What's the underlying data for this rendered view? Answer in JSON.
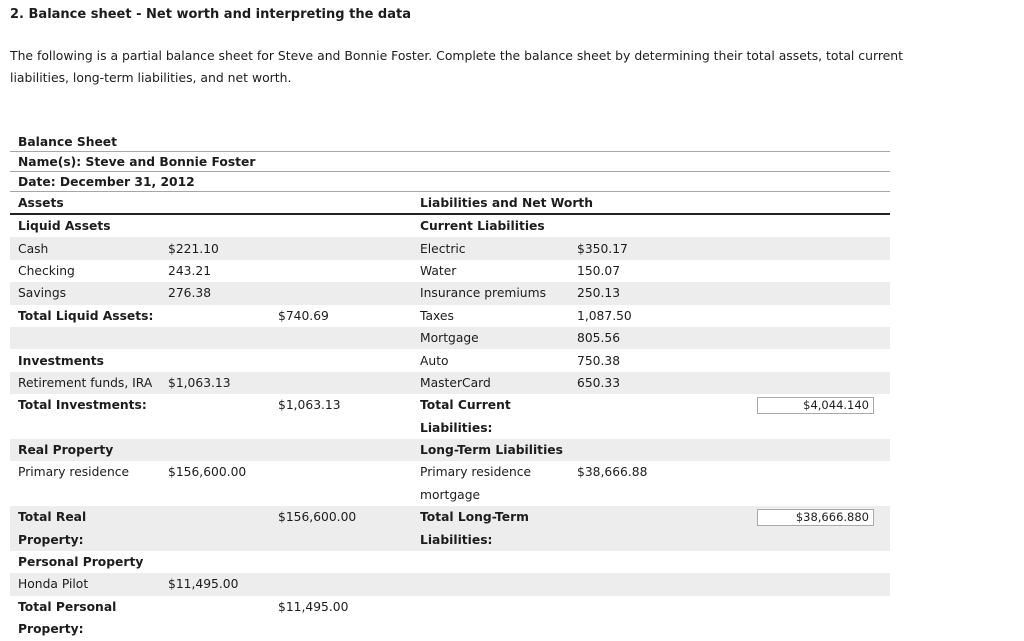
{
  "page": {
    "heading": "2. Balance sheet - Net worth and interpreting the data",
    "intro_lines": [
      "The following is a partial balance sheet for Steve and Bonnie Foster. Complete the balance sheet by determining their total assets, total current",
      "liabilities, long-term liabilities, and net worth."
    ]
  },
  "sheet": {
    "title": "Balance Sheet",
    "name_line": "Name(s): Steve and Bonnie Foster",
    "date_line": "Date: December 31, 2012",
    "assets_header": "Assets",
    "liabilities_header": "Liabilities and Net Worth",
    "rows": [
      {
        "stripe": false,
        "ll": "Liquid Assets",
        "lb": true,
        "rl": "Current Liabilities",
        "rb": true
      },
      {
        "stripe": true,
        "ll": "Cash",
        "lv1": "$221.10",
        "rl": "Electric",
        "rv1": "$350.17"
      },
      {
        "stripe": false,
        "ll": "Checking",
        "lv1": "243.21",
        "rl": "Water",
        "rv1": "150.07"
      },
      {
        "stripe": true,
        "ll": "Savings",
        "lv1": "276.38",
        "rl": "Insurance premiums",
        "rv1": "250.13"
      },
      {
        "stripe": false,
        "ll": "Total Liquid Assets:",
        "lb": true,
        "lv2": "$740.69",
        "rl": "Taxes",
        "rv1": "1,087.50"
      },
      {
        "stripe": true,
        "rl": "Mortgage",
        "rv1": "805.56"
      },
      {
        "stripe": false,
        "ll": "Investments",
        "lb": true,
        "rl": "Auto",
        "rv1": "750.38"
      },
      {
        "stripe": true,
        "ll": "Retirement funds, IRA",
        "lv1": "$1,063.13",
        "rl": "MasterCard",
        "rv1": "650.33"
      },
      {
        "stripe": false,
        "ll": "Total Investments:",
        "lb": true,
        "lv2": "$1,063.13",
        "rl": "Total Current",
        "rb": true,
        "input": "$4,044.140",
        "input_name": "total-current-liabilities-input"
      },
      {
        "stripe": false,
        "rl": "Liabilities:",
        "rb": true
      },
      {
        "stripe": true,
        "ll": "Real Property",
        "lb": true,
        "rl": "Long-Term Liabilities",
        "rb": true
      },
      {
        "stripe": false,
        "ll": "Primary residence",
        "lv1": "$156,600.00",
        "rl": "Primary residence",
        "rv1": "$38,666.88"
      },
      {
        "stripe": false,
        "rl": "mortgage"
      },
      {
        "stripe": true,
        "ll": "Total Real",
        "lb": true,
        "lv2": "$156,600.00",
        "rl": "Total Long-Term",
        "rb": true,
        "input": "$38,666.880",
        "input_name": "total-long-term-liabilities-input"
      },
      {
        "stripe": true,
        "ll": "Property:",
        "lb": true,
        "rl": "Liabilities:",
        "rb": true
      },
      {
        "stripe": false,
        "ll": "Personal Property",
        "lb": true
      },
      {
        "stripe": true,
        "ll": "Honda Pilot",
        "lv1": "$11,495.00"
      },
      {
        "stripe": false,
        "ll": "Total Personal",
        "lb": true,
        "lv2": "$11,495.00"
      },
      {
        "stripe": false,
        "ll": "Property:",
        "lb": true
      }
    ]
  }
}
